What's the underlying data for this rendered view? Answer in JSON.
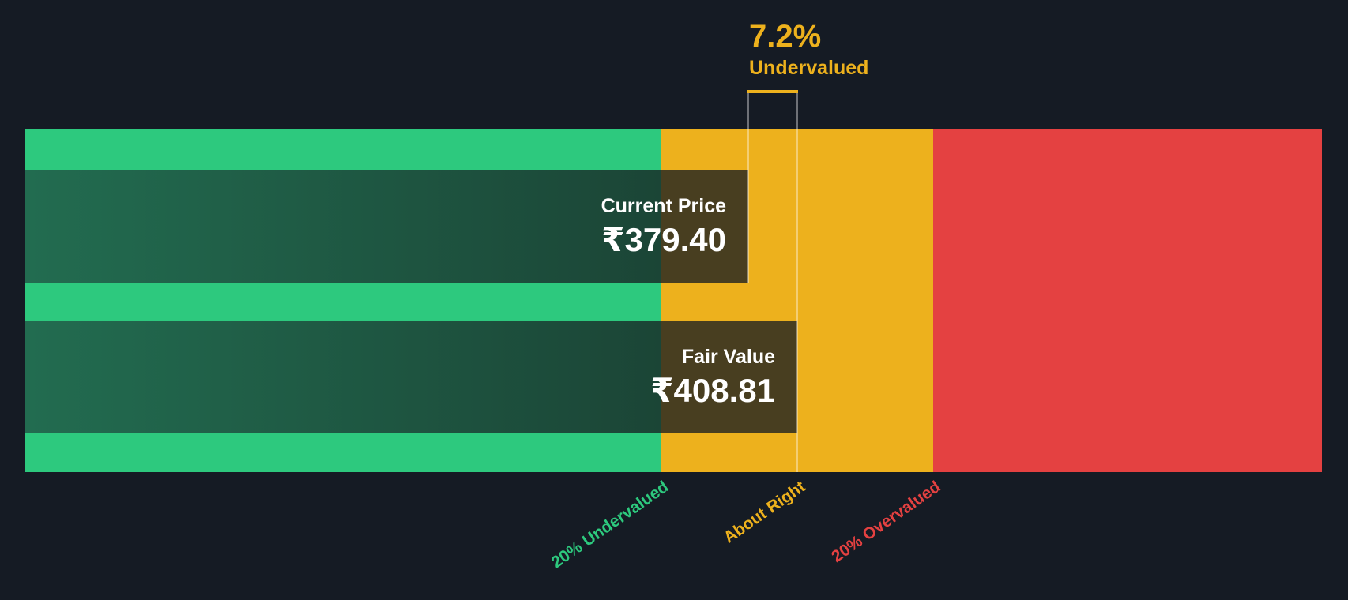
{
  "colors": {
    "background": "#151B24",
    "zone_undervalued": "#2DC97E",
    "zone_about_right": "#EDB11D",
    "zone_overvalued": "#E44141",
    "bar_green_start": "#226C50",
    "bar_green_end": "#1B4536",
    "bar_olive": "#483E20",
    "value_text": "#FFFFFF",
    "header_text": "#EDB11D",
    "marker_line": "rgba(255,255,255,0.38)"
  },
  "header": {
    "percent": "7.2%",
    "status": "Undervalued"
  },
  "current_price": {
    "label": "Current Price",
    "value": "₹379.40"
  },
  "fair_value": {
    "label": "Fair Value",
    "value": "₹408.81"
  },
  "axis_labels": {
    "undervalued": "20% Undervalued",
    "about_right": "About Right",
    "overvalued": "20% Overvalued"
  },
  "chart_data": {
    "type": "bar",
    "subtype": "fair-value-gauge",
    "title": "7.2% Undervalued",
    "currency_symbol": "₹",
    "series": [
      {
        "name": "Current Price",
        "value": 379.4,
        "display": "₹379.40"
      },
      {
        "name": "Fair Value",
        "value": 408.81,
        "display": "₹408.81"
      }
    ],
    "discount_percent": 7.2,
    "valuation_status": "Undervalued",
    "zones": [
      {
        "label": "20% Undervalued",
        "color": "#2DC97E"
      },
      {
        "label": "About Right",
        "color": "#EDB11D"
      },
      {
        "label": "20% Overvalued",
        "color": "#E44141"
      }
    ],
    "x_axis_tick_labels": [
      "20% Undervalued",
      "About Right",
      "20% Overvalued"
    ],
    "legend": "none",
    "grid": false
  }
}
